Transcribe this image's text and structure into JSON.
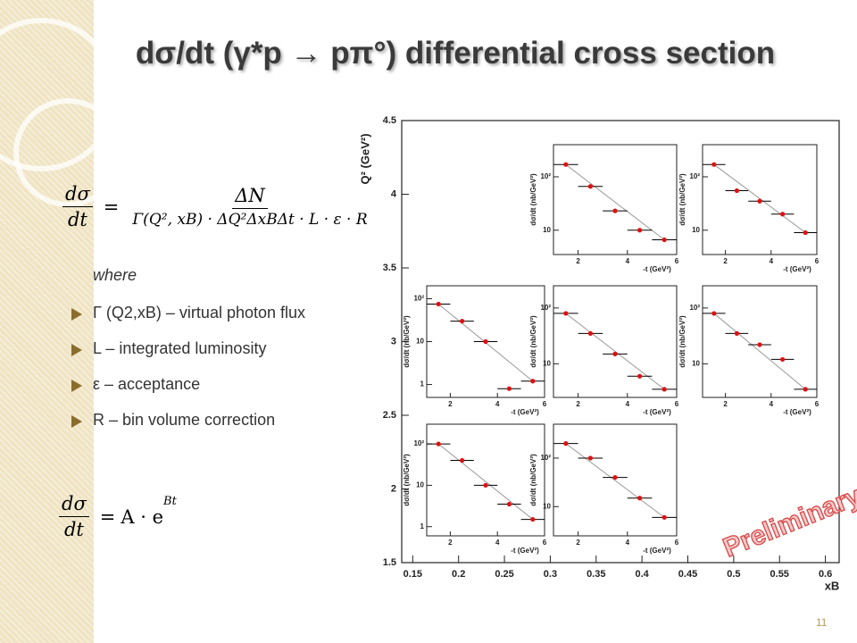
{
  "title": "dσ/dt (γ*p → pπ°) differential cross section",
  "formula1": {
    "lhs_num": "dσ",
    "lhs_den": "dt",
    "rhs_num": "ΔN",
    "rhs_den": "Γ(Q², xB) · ΔQ²ΔxBΔt · L · ε · R"
  },
  "where": "where",
  "bullets": [
    "Γ (Q2,xB) – virtual photon flux",
    "L – integrated luminosity",
    "ε – acceptance",
    "R – bin volume correction"
  ],
  "formula2": {
    "lhs_num": "dσ",
    "lhs_den": "dt",
    "rhs": "A · e",
    "rhs_sup": "Bt"
  },
  "chart_data": {
    "type": "scatter",
    "ylabel": "Q² (GeV²)",
    "xlabel": "xB",
    "xlim": [
      0.138,
      0.615
    ],
    "ylim": [
      1.5,
      4.5
    ],
    "xticks": [
      0.15,
      0.2,
      0.25,
      0.3,
      0.35,
      0.4,
      0.45,
      0.5,
      0.55,
      0.6
    ],
    "yticks": [
      1.5,
      2,
      2.5,
      3,
      3.5,
      4,
      4.5
    ],
    "panel_xlabel": "-t (GeV²)",
    "panel_ylabel": "dσ/dt (nb/GeV²)",
    "panel_xlim": [
      1,
      6
    ],
    "panel_xticks": [
      2,
      4,
      6
    ],
    "log_y": true,
    "t": [
      1.5,
      2.5,
      3.5,
      4.5,
      5.5
    ],
    "t_err": 0.5,
    "color": "#e01010",
    "panels": [
      {
        "ylim": [
          3.5,
          400
        ],
        "yticks": [
          10,
          {
            "value": 100,
            "label": "10²"
          }
        ],
        "values": [
          170,
          66,
          23,
          10,
          6.6
        ]
      },
      {
        "ylim": [
          3.5,
          400
        ],
        "yticks": [
          10,
          {
            "value": 100,
            "label": "10²"
          }
        ],
        "values": [
          170,
          55,
          35,
          20,
          9
        ]
      },
      {
        "ylim": [
          0.5,
          200
        ],
        "yticks": [
          1,
          10,
          {
            "value": 100,
            "label": "10²"
          }
        ],
        "values": [
          75,
          30,
          10,
          0.8,
          1.2
        ]
      },
      {
        "ylim": [
          2.5,
          250
        ],
        "yticks": [
          10,
          {
            "value": 100,
            "label": "10²"
          }
        ],
        "values": [
          80,
          35,
          15,
          6,
          3.5
        ]
      },
      {
        "ylim": [
          2.5,
          250
        ],
        "yticks": [
          10,
          {
            "value": 100,
            "label": "10²"
          }
        ],
        "values": [
          80,
          35,
          22,
          12,
          3.5
        ]
      },
      {
        "ylim": [
          0.6,
          300
        ],
        "yticks": [
          1,
          10,
          {
            "value": 100,
            "label": "10²"
          }
        ],
        "values": [
          100,
          40,
          10,
          3.5,
          1.5
        ]
      },
      {
        "ylim": [
          2.5,
          500
        ],
        "yticks": [
          10,
          {
            "value": 100,
            "label": "10²"
          }
        ],
        "values": [
          200,
          100,
          40,
          15,
          6
        ]
      }
    ],
    "watermark": "Preliminary"
  },
  "page_number": "11"
}
